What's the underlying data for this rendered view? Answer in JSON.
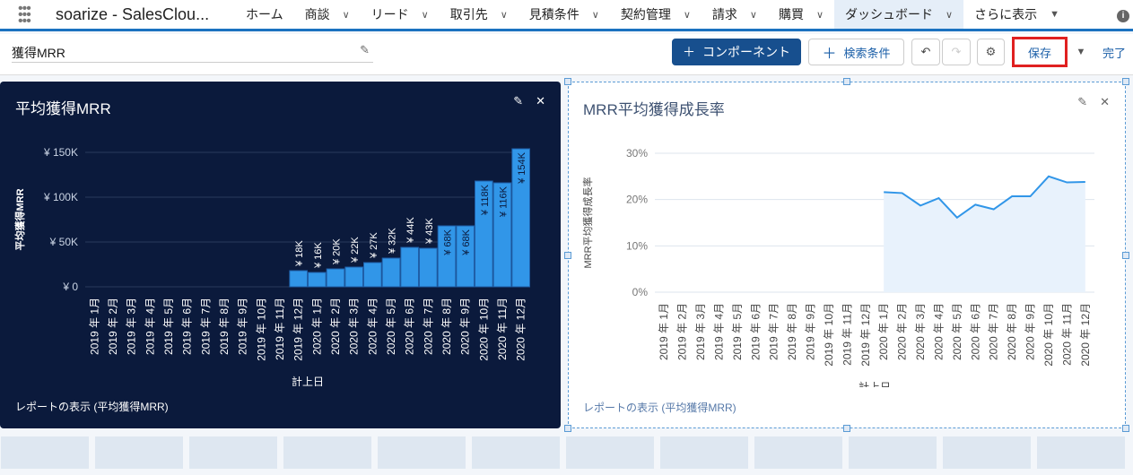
{
  "nav": {
    "app_name": "soarize - SalesClou...",
    "items": [
      {
        "label": "ホーム",
        "chevron": false
      },
      {
        "label": "商談",
        "chevron": true
      },
      {
        "label": "リード",
        "chevron": true
      },
      {
        "label": "取引先",
        "chevron": true
      },
      {
        "label": "見積条件",
        "chevron": true
      },
      {
        "label": "契約管理",
        "chevron": true
      },
      {
        "label": "請求",
        "chevron": true
      },
      {
        "label": "購買",
        "chevron": true
      },
      {
        "label": "ダッシュボード",
        "chevron": true,
        "active": true
      },
      {
        "label": "さらに表示",
        "chevron": "caret"
      }
    ]
  },
  "toolbar": {
    "title": "獲得MRR",
    "component_label": "コンポーネント",
    "filter_label": "検索条件",
    "save_label": "保存",
    "done_label": "完了"
  },
  "colors": {
    "brand": "#1b72c0",
    "card_dark": "#0b1a3c",
    "bar": "#3196e8",
    "line": "#3196e8",
    "save_highlight": "#e02020"
  },
  "chart_data": [
    {
      "type": "bar",
      "title": "平均獲得MRR",
      "xlabel": "計上日",
      "ylabel": "平均獲得MRR",
      "report_link": "レポートの表示 (平均獲得MRR)",
      "categories": [
        "2019 年 1月",
        "2019 年 2月",
        "2019 年 3月",
        "2019 年 4月",
        "2019 年 5月",
        "2019 年 6月",
        "2019 年 7月",
        "2019 年 8月",
        "2019 年 9月",
        "2019 年 10月",
        "2019 年 11月",
        "2019 年 12月",
        "2020 年 1月",
        "2020 年 2月",
        "2020 年 3月",
        "2020 年 4月",
        "2020 年 5月",
        "2020 年 6月",
        "2020 年 7月",
        "2020 年 8月",
        "2020 年 9月",
        "2020 年 10月",
        "2020 年 11月",
        "2020 年 12月"
      ],
      "values": [
        null,
        null,
        null,
        null,
        null,
        null,
        null,
        null,
        null,
        null,
        null,
        18000,
        16000,
        20000,
        22000,
        27000,
        32000,
        44000,
        43000,
        68000,
        68000,
        118000,
        116000,
        154000
      ],
      "data_labels": [
        "",
        "",
        "",
        "",
        "",
        "",
        "",
        "",
        "",
        "",
        "",
        "¥ 18K",
        "¥ 16K",
        "¥ 20K",
        "¥ 22K",
        "¥ 27K",
        "¥ 32K",
        "¥ 44K",
        "¥ 43K",
        "¥ 68K",
        "¥ 68K",
        "¥ 118K",
        "¥ 116K",
        "¥ 154K"
      ],
      "yticks": [
        0,
        50000,
        100000,
        150000
      ],
      "ytick_labels": [
        "¥ 0",
        "¥ 50K",
        "¥ 100K",
        "¥ 150K"
      ],
      "ylim": [
        0,
        150000
      ],
      "grid": true
    },
    {
      "type": "area",
      "title": "MRR平均獲得成長率",
      "xlabel": "計上日",
      "ylabel": "MRR平均獲得成長率",
      "report_link": "レポートの表示 (平均獲得MRR)",
      "categories": [
        "2019 年 1月",
        "2019 年 2月",
        "2019 年 3月",
        "2019 年 4月",
        "2019 年 5月",
        "2019 年 6月",
        "2019 年 7月",
        "2019 年 8月",
        "2019 年 9月",
        "2019 年 10月",
        "2019 年 11月",
        "2019 年 12月",
        "2020 年 1月",
        "2020 年 2月",
        "2020 年 3月",
        "2020 年 4月",
        "2020 年 5月",
        "2020 年 6月",
        "2020 年 7月",
        "2020 年 8月",
        "2020 年 9月",
        "2020 年 10月",
        "2020 年 11月",
        "2020 年 12月"
      ],
      "values": [
        null,
        null,
        null,
        null,
        null,
        null,
        null,
        null,
        null,
        null,
        null,
        null,
        21.6,
        21.4,
        18.7,
        20.3,
        16.1,
        18.9,
        17.9,
        20.7,
        20.7,
        25.0,
        23.7,
        23.8
      ],
      "yticks": [
        0,
        10,
        20,
        30
      ],
      "ytick_labels": [
        "0%",
        "10%",
        "20%",
        "30%"
      ],
      "ylim": [
        0,
        30
      ],
      "grid": true
    }
  ]
}
